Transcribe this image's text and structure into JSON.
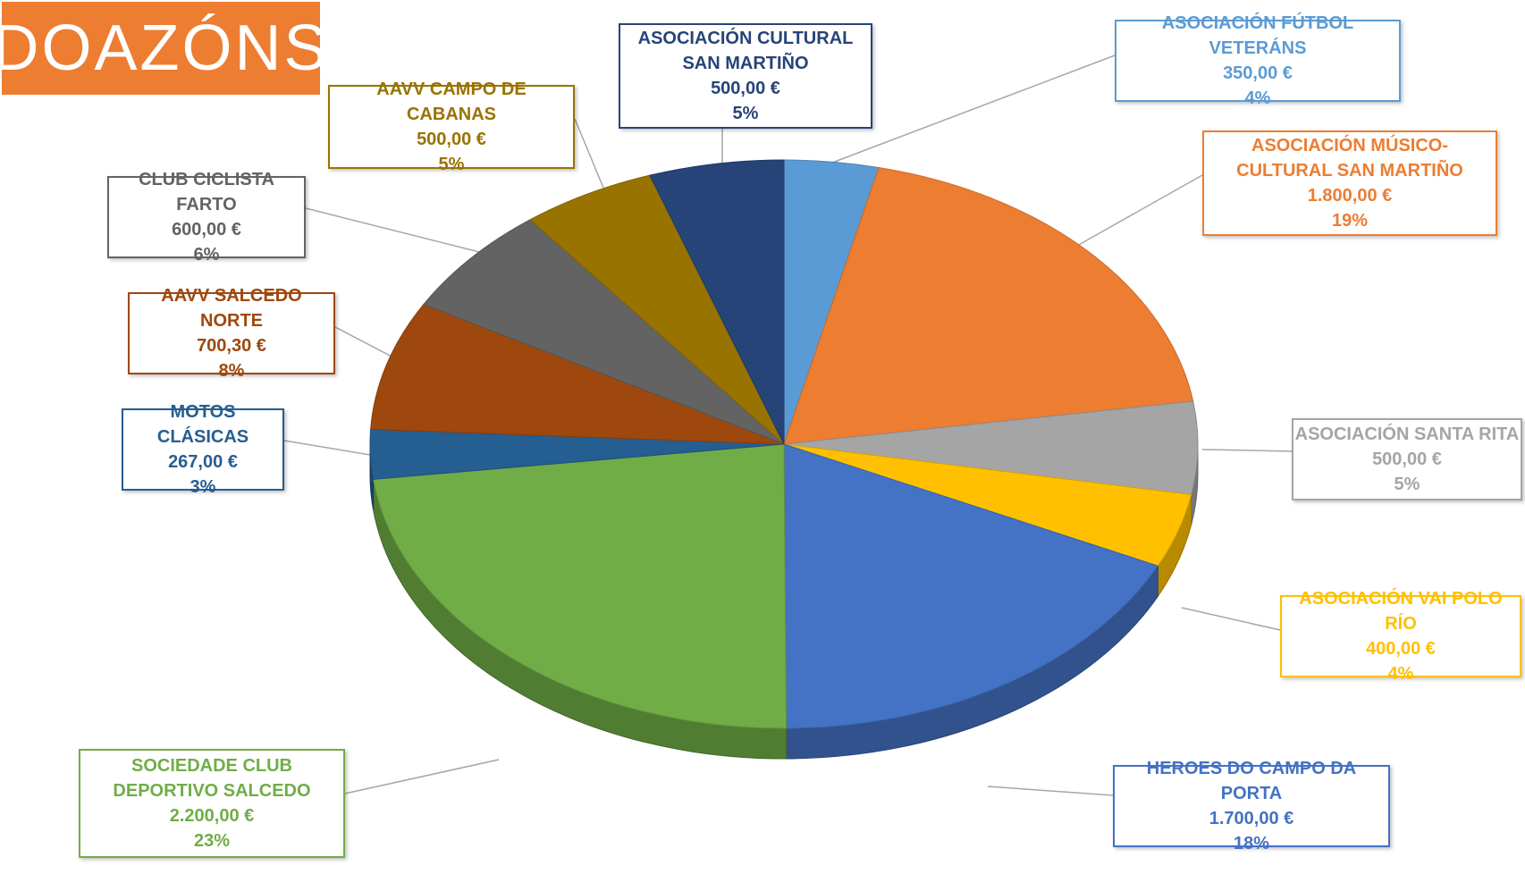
{
  "title": "DOAZÓNS",
  "chart_data": {
    "type": "pie",
    "slices": [
      {
        "label": "ASOCIACIÓN FÚTBOL VETERÁNS",
        "value_label": "350,00 €",
        "value": 350.0,
        "percent_label": "4%",
        "color": "#5B9BD5",
        "text_color": "#5B9BD5"
      },
      {
        "label": "ASOCIACIÓN MÚSICO-CULTURAL SAN MARTIÑO",
        "value_label": "1.800,00 €",
        "value": 1800.0,
        "percent_label": "19%",
        "color": "#ED7D31",
        "text_color": "#ED7D31"
      },
      {
        "label": "ASOCIACIÓN SANTA RITA",
        "value_label": "500,00 €",
        "value": 500.0,
        "percent_label": "5%",
        "color": "#A5A5A5",
        "text_color": "#A5A5A5"
      },
      {
        "label": "ASOCIACIÓN VAI POLO RÍO",
        "value_label": "400,00 €",
        "value": 400.0,
        "percent_label": "4%",
        "color": "#FFC000",
        "text_color": "#FFC000"
      },
      {
        "label": "HEROES DO CAMPO DA PORTA",
        "value_label": "1.700,00 €",
        "value": 1700.0,
        "percent_label": "18%",
        "color": "#4472C4",
        "text_color": "#4472C4"
      },
      {
        "label": "SOCIEDADE CLUB DEPORTIVO SALCEDO",
        "value_label": "2.200,00 €",
        "value": 2200.0,
        "percent_label": "23%",
        "color": "#70AD47",
        "text_color": "#70AD47"
      },
      {
        "label": "MOTOS CLÁSICAS",
        "value_label": "267,00 €",
        "value": 267.0,
        "percent_label": "3%",
        "color": "#255E91",
        "text_color": "#255E91"
      },
      {
        "label": "AAVV SALCEDO NORTE",
        "value_label": "700,30 €",
        "value": 700.3,
        "percent_label": "8%",
        "color": "#9E480E",
        "text_color": "#9E480E"
      },
      {
        "label": "CLUB CICLISTA FARTO",
        "value_label": "600,00 €",
        "value": 600.0,
        "percent_label": "6%",
        "color": "#636363",
        "text_color": "#636363"
      },
      {
        "label": "AAVV CAMPO DE CABANAS",
        "value_label": "500,00 €",
        "value": 500.0,
        "percent_label": "5%",
        "color": "#997300",
        "text_color": "#997300"
      },
      {
        "label": "ASOCIACIÓN CULTURAL SAN MARTIÑO",
        "value_label": "500,00 €",
        "value": 500.0,
        "percent_label": "5%",
        "color": "#264478",
        "text_color": "#264478"
      }
    ]
  }
}
